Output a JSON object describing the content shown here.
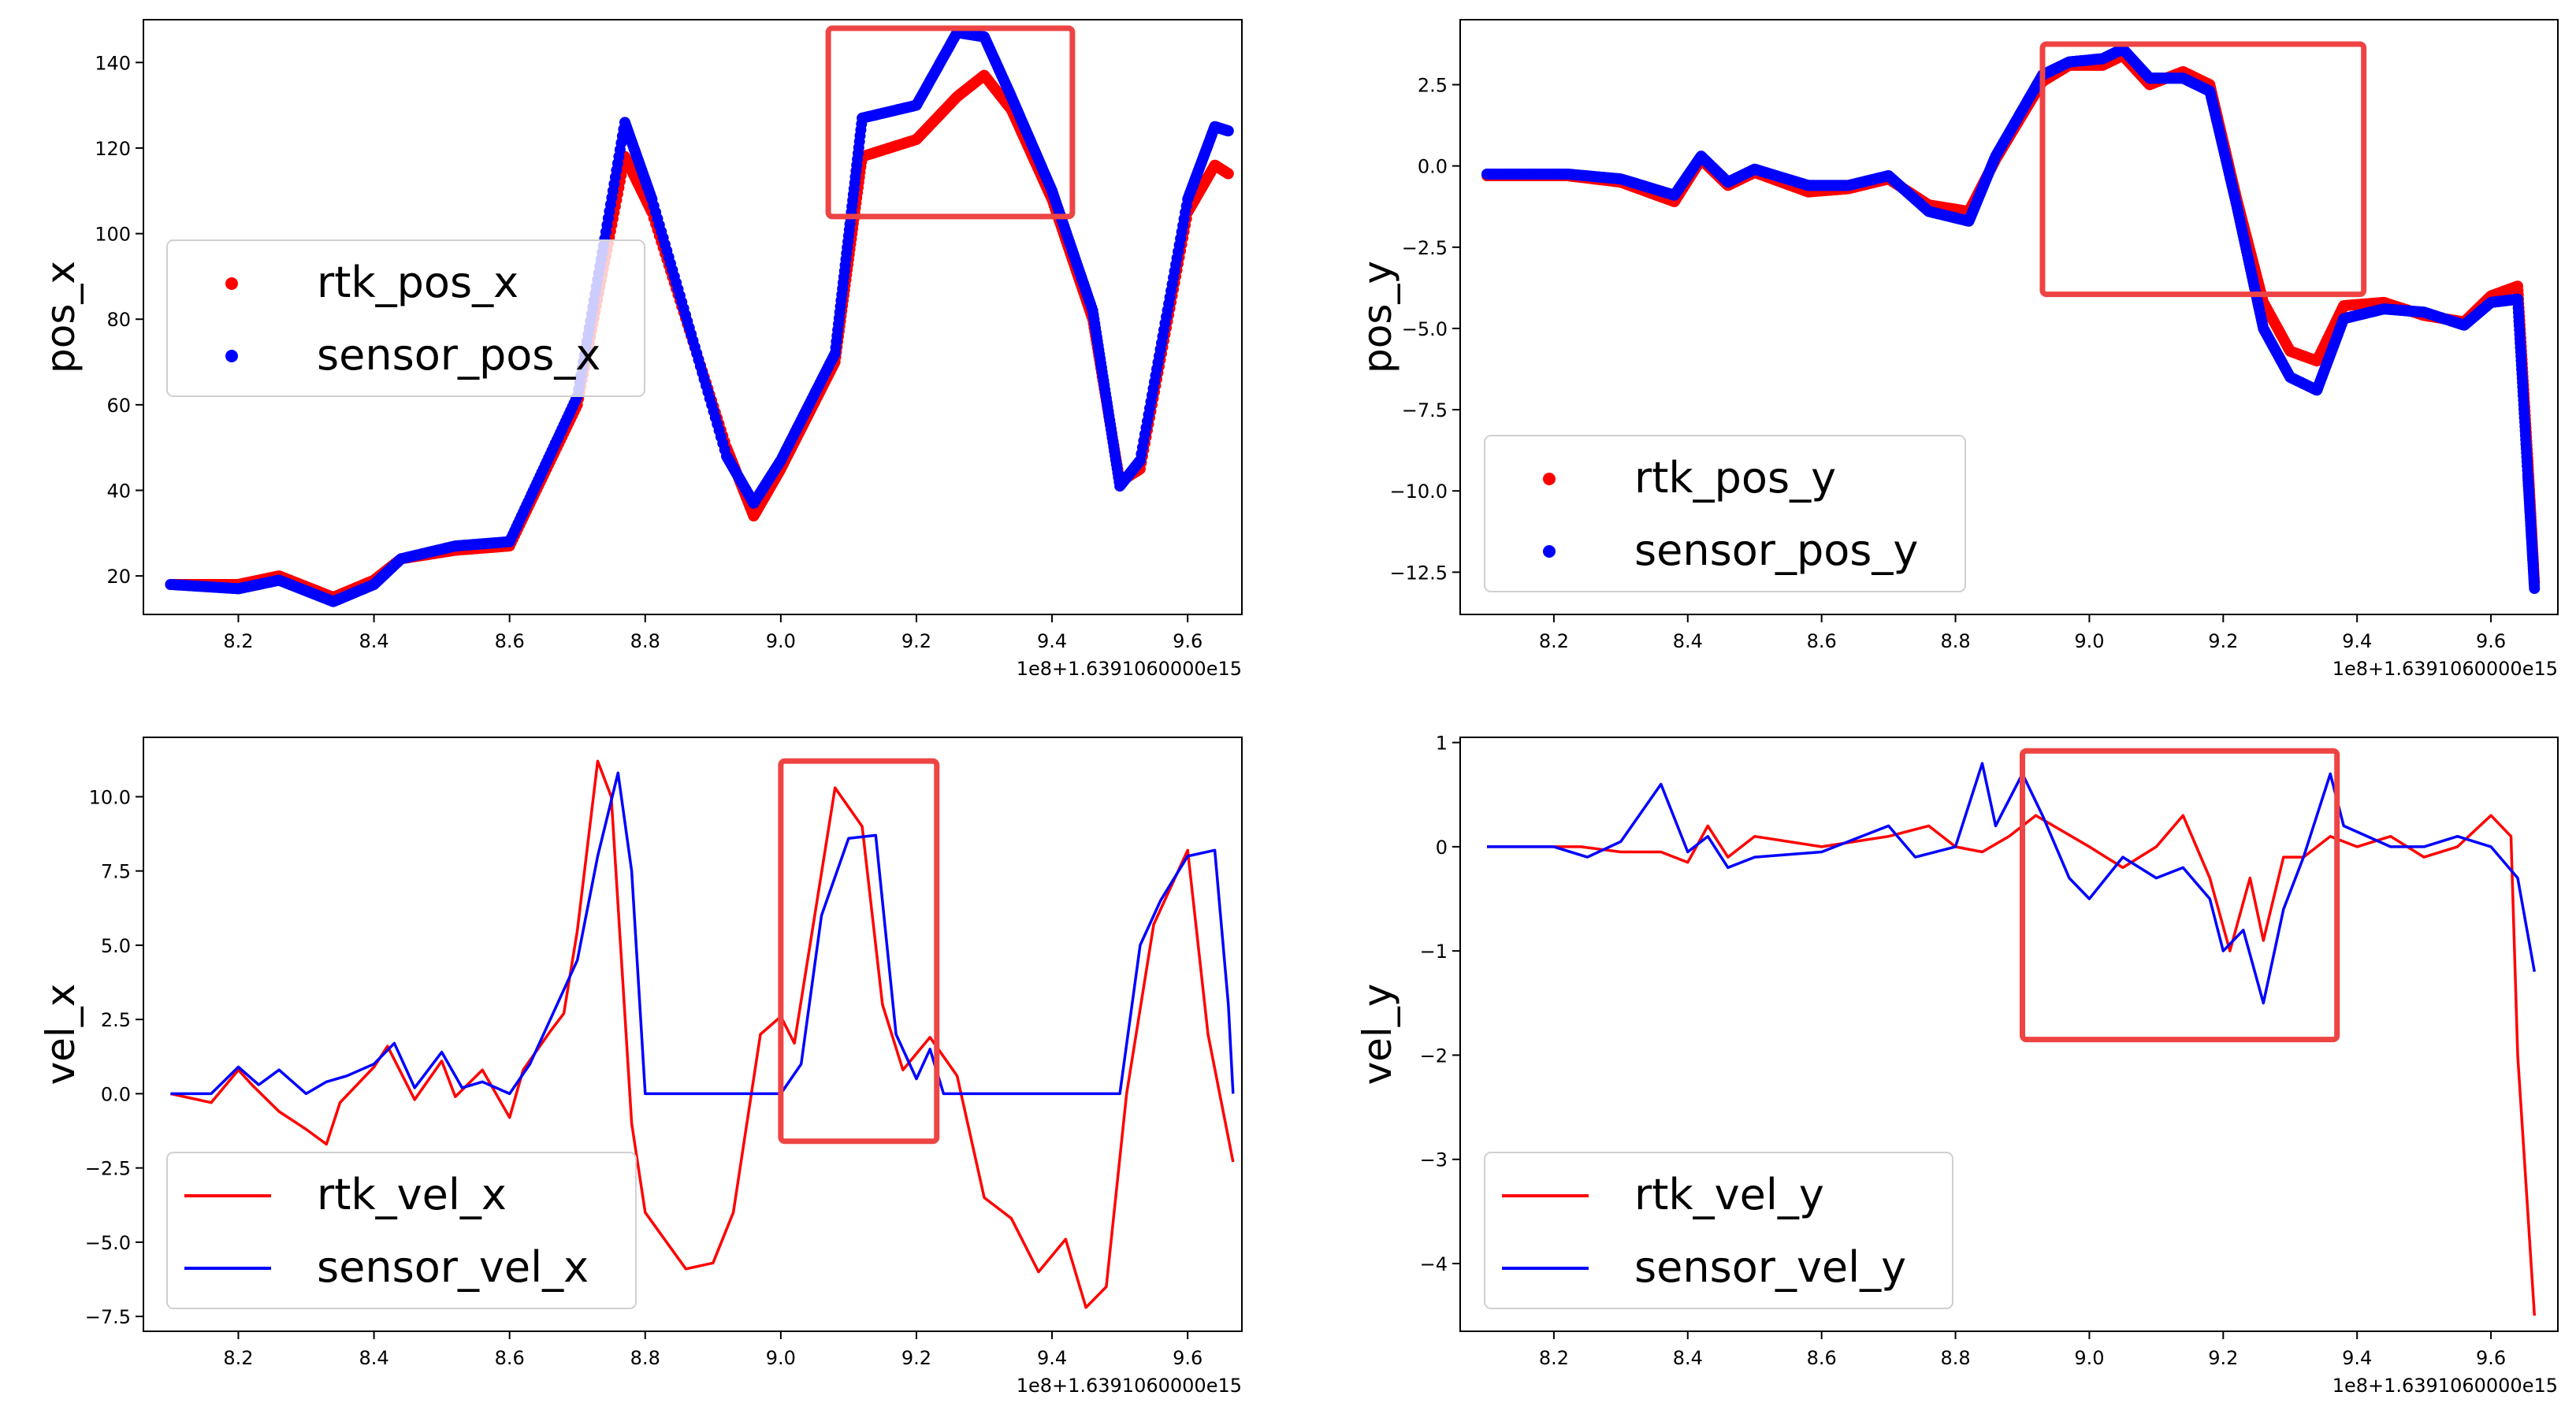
{
  "chart_data": [
    {
      "type": "scatter",
      "ylabel": "pos_x",
      "offset_label": "1e8+1.6391060000e15",
      "xlim": [
        8.06,
        9.68
      ],
      "ylim": [
        11,
        150
      ],
      "xticks": [
        8.2,
        8.4,
        8.6,
        8.8,
        9.0,
        9.2,
        9.4,
        9.6
      ],
      "xtick_labels": [
        "8.2",
        "8.4",
        "8.6",
        "8.8",
        "9.0",
        "9.2",
        "9.4",
        "9.6"
      ],
      "yticks": [
        20,
        40,
        60,
        80,
        100,
        120,
        140
      ],
      "ytick_labels": [
        "20",
        "40",
        "60",
        "80",
        "100",
        "120",
        "140"
      ],
      "legend": "center-left",
      "highlight_box": {
        "x": [
          9.07,
          9.43
        ],
        "y": [
          104,
          148
        ]
      },
      "series": [
        {
          "name": "rtk_pos_x",
          "color": "#ff0000",
          "marker": "dot",
          "x": [
            8.1,
            8.2,
            8.26,
            8.34,
            8.4,
            8.44,
            8.52,
            8.6,
            8.7,
            8.77,
            8.81,
            8.92,
            8.96,
            9.0,
            9.08,
            9.12,
            9.2,
            9.26,
            9.3,
            9.34,
            9.4,
            9.46,
            9.5,
            9.53,
            9.6,
            9.64,
            9.66
          ],
          "y": [
            18,
            18,
            20,
            15,
            19,
            24,
            26,
            27,
            60,
            118,
            105,
            50,
            34,
            45,
            70,
            118,
            122,
            132,
            137,
            129,
            108,
            80,
            42,
            45,
            105,
            116,
            114
          ]
        },
        {
          "name": "sensor_pos_x",
          "color": "#0000ff",
          "marker": "dot",
          "x": [
            8.1,
            8.2,
            8.26,
            8.34,
            8.4,
            8.44,
            8.52,
            8.6,
            8.7,
            8.77,
            8.81,
            8.92,
            8.96,
            9.0,
            9.08,
            9.12,
            9.2,
            9.26,
            9.3,
            9.34,
            9.4,
            9.46,
            9.5,
            9.53,
            9.6,
            9.64,
            9.66
          ],
          "y": [
            18,
            17,
            19,
            14,
            18,
            24,
            27,
            28,
            62,
            126,
            108,
            48,
            37,
            47,
            72,
            127,
            130,
            147,
            146,
            132,
            110,
            82,
            41,
            47,
            108,
            125,
            124
          ]
        }
      ]
    },
    {
      "type": "scatter",
      "ylabel": "pos_y",
      "offset_label": "1e8+1.6391060000e15",
      "xlim": [
        8.06,
        9.7
      ],
      "ylim": [
        -13.8,
        4.5
      ],
      "xticks": [
        8.2,
        8.4,
        8.6,
        8.8,
        9.0,
        9.2,
        9.4,
        9.6
      ],
      "xtick_labels": [
        "8.2",
        "8.4",
        "8.6",
        "8.8",
        "9.0",
        "9.2",
        "9.4",
        "9.6"
      ],
      "yticks": [
        2.5,
        0.0,
        -2.5,
        -5.0,
        -7.5,
        -10.0,
        -12.5
      ],
      "ytick_labels": [
        "2.5",
        "0.0",
        "−2.5",
        "−5.0",
        "−7.5",
        "−10.0",
        "−12.5"
      ],
      "legend": "lower-left",
      "highlight_box": {
        "x": [
          8.93,
          9.41
        ],
        "y": [
          -3.95,
          3.75
        ]
      },
      "series": [
        {
          "name": "rtk_pos_y",
          "color": "#ff0000",
          "marker": "dot",
          "x": [
            8.1,
            8.22,
            8.3,
            8.38,
            8.42,
            8.46,
            8.5,
            8.58,
            8.64,
            8.7,
            8.76,
            8.82,
            8.86,
            8.93,
            8.97,
            9.02,
            9.05,
            9.09,
            9.14,
            9.18,
            9.22,
            9.26,
            9.3,
            9.34,
            9.38,
            9.44,
            9.5,
            9.56,
            9.6,
            9.64,
            9.655,
            9.665
          ],
          "y": [
            -0.3,
            -0.3,
            -0.5,
            -1.1,
            0.2,
            -0.6,
            -0.2,
            -0.8,
            -0.7,
            -0.4,
            -1.2,
            -1.4,
            0.2,
            2.6,
            3.1,
            3.1,
            3.4,
            2.5,
            2.9,
            2.5,
            -1.0,
            -4.2,
            -5.7,
            -6.0,
            -4.3,
            -4.2,
            -4.6,
            -4.8,
            -4.0,
            -3.7,
            -9.0,
            -12.8
          ]
        },
        {
          "name": "sensor_pos_y",
          "color": "#0000ff",
          "marker": "dot",
          "x": [
            8.1,
            8.22,
            8.3,
            8.38,
            8.42,
            8.46,
            8.5,
            8.58,
            8.64,
            8.7,
            8.76,
            8.82,
            8.86,
            8.93,
            8.97,
            9.02,
            9.05,
            9.09,
            9.14,
            9.18,
            9.22,
            9.26,
            9.3,
            9.34,
            9.38,
            9.44,
            9.5,
            9.56,
            9.6,
            9.64,
            9.655,
            9.665
          ],
          "y": [
            -0.25,
            -0.25,
            -0.4,
            -0.9,
            0.3,
            -0.5,
            -0.1,
            -0.6,
            -0.6,
            -0.3,
            -1.4,
            -1.7,
            0.3,
            2.8,
            3.2,
            3.3,
            3.6,
            2.7,
            2.7,
            2.3,
            -1.2,
            -5.0,
            -6.5,
            -6.9,
            -4.7,
            -4.4,
            -4.5,
            -4.9,
            -4.2,
            -4.1,
            -9.5,
            -13.0
          ]
        }
      ]
    },
    {
      "type": "line",
      "ylabel": "vel_x",
      "offset_label": "1e8+1.6391060000e15",
      "xlim": [
        8.06,
        9.68
      ],
      "ylim": [
        -8.0,
        12.0
      ],
      "xticks": [
        8.2,
        8.4,
        8.6,
        8.8,
        9.0,
        9.2,
        9.4,
        9.6
      ],
      "xtick_labels": [
        "8.2",
        "8.4",
        "8.6",
        "8.8",
        "9.0",
        "9.2",
        "9.4",
        "9.6"
      ],
      "yticks": [
        10.0,
        7.5,
        5.0,
        2.5,
        0.0,
        -2.5,
        -5.0,
        -7.5
      ],
      "ytick_labels": [
        "10.0",
        "7.5",
        "5.0",
        "2.5",
        "0.0",
        "−2.5",
        "−5.0",
        "−7.5"
      ],
      "legend": "lower-left",
      "highlight_box": {
        "x": [
          9.0,
          9.23
        ],
        "y": [
          -1.6,
          11.2
        ]
      },
      "series": [
        {
          "name": "rtk_vel_x",
          "color": "#ff0000",
          "x": [
            8.1,
            8.16,
            8.2,
            8.22,
            8.26,
            8.3,
            8.33,
            8.35,
            8.4,
            8.42,
            8.46,
            8.5,
            8.52,
            8.56,
            8.6,
            8.62,
            8.66,
            8.68,
            8.7,
            8.73,
            8.75,
            8.78,
            8.8,
            8.86,
            8.9,
            8.93,
            8.97,
            9.0,
            9.02,
            9.05,
            9.08,
            9.12,
            9.15,
            9.18,
            9.22,
            9.26,
            9.3,
            9.34,
            9.38,
            9.42,
            9.45,
            9.48,
            9.51,
            9.55,
            9.6,
            9.63,
            9.667
          ],
          "y": [
            0.0,
            -0.3,
            0.8,
            0.3,
            -0.6,
            -1.2,
            -1.7,
            -0.3,
            0.9,
            1.6,
            -0.2,
            1.1,
            -0.1,
            0.8,
            -0.8,
            0.8,
            2.1,
            2.7,
            5.5,
            11.2,
            10.0,
            -1.0,
            -4.0,
            -5.9,
            -5.7,
            -4.0,
            2.0,
            2.6,
            1.7,
            6.0,
            10.3,
            9.0,
            3.0,
            0.8,
            1.9,
            0.6,
            -3.5,
            -4.2,
            -6.0,
            -4.9,
            -7.2,
            -6.5,
            0.0,
            5.7,
            8.2,
            2.0,
            -2.3
          ]
        },
        {
          "name": "sensor_vel_x",
          "color": "#0000ff",
          "x": [
            8.1,
            8.16,
            8.2,
            8.23,
            8.26,
            8.3,
            8.33,
            8.36,
            8.4,
            8.43,
            8.46,
            8.5,
            8.53,
            8.56,
            8.6,
            8.63,
            8.66,
            8.7,
            8.73,
            8.76,
            8.78,
            8.8,
            9.0,
            9.03,
            9.06,
            9.1,
            9.14,
            9.17,
            9.2,
            9.22,
            9.24,
            9.5,
            9.53,
            9.56,
            9.6,
            9.64,
            9.66,
            9.667
          ],
          "y": [
            0.0,
            0.0,
            0.9,
            0.3,
            0.8,
            0.0,
            0.4,
            0.6,
            1.0,
            1.7,
            0.2,
            1.4,
            0.2,
            0.4,
            0.0,
            1.0,
            2.5,
            4.5,
            8.0,
            10.8,
            7.5,
            0.0,
            0.0,
            1.0,
            6.0,
            8.6,
            8.7,
            2.0,
            0.5,
            1.5,
            0.0,
            0.0,
            5.0,
            6.5,
            8.0,
            8.2,
            3.0,
            0.0
          ]
        }
      ]
    },
    {
      "type": "line",
      "ylabel": "vel_y",
      "offset_label": "1e8+1.6391060000e15",
      "xlim": [
        8.06,
        9.7
      ],
      "ylim": [
        -4.65,
        1.05
      ],
      "xticks": [
        8.2,
        8.4,
        8.6,
        8.8,
        9.0,
        9.2,
        9.4,
        9.6
      ],
      "xtick_labels": [
        "8.2",
        "8.4",
        "8.6",
        "8.8",
        "9.0",
        "9.2",
        "9.4",
        "9.6"
      ],
      "yticks": [
        1,
        0,
        -1,
        -2,
        -3,
        -4
      ],
      "ytick_labels": [
        "1",
        "0",
        "−1",
        "−2",
        "−3",
        "−4"
      ],
      "legend": "lower-left",
      "highlight_box": {
        "x": [
          8.9,
          9.37
        ],
        "y": [
          -1.85,
          0.92
        ]
      },
      "series": [
        {
          "name": "rtk_vel_y",
          "color": "#ff0000",
          "x": [
            8.1,
            8.24,
            8.3,
            8.36,
            8.4,
            8.43,
            8.46,
            8.5,
            8.6,
            8.7,
            8.76,
            8.8,
            8.84,
            8.88,
            8.92,
            9.0,
            9.05,
            9.1,
            9.14,
            9.18,
            9.21,
            9.24,
            9.26,
            9.29,
            9.32,
            9.36,
            9.4,
            9.45,
            9.5,
            9.55,
            9.6,
            9.63,
            9.64,
            9.665
          ],
          "y": [
            0.0,
            0.0,
            -0.05,
            -0.05,
            -0.15,
            0.2,
            -0.1,
            0.1,
            0.0,
            0.1,
            0.2,
            0.0,
            -0.05,
            0.1,
            0.3,
            0.0,
            -0.2,
            0.0,
            0.3,
            -0.3,
            -1.0,
            -0.3,
            -0.9,
            -0.1,
            -0.1,
            0.1,
            0.0,
            0.1,
            -0.1,
            0.0,
            0.3,
            0.1,
            -2.0,
            -4.5
          ]
        },
        {
          "name": "sensor_vel_y",
          "color": "#0000ff",
          "x": [
            8.1,
            8.2,
            8.25,
            8.3,
            8.36,
            8.4,
            8.43,
            8.46,
            8.5,
            8.6,
            8.7,
            8.74,
            8.8,
            8.84,
            8.86,
            8.9,
            8.93,
            8.97,
            9.0,
            9.05,
            9.1,
            9.14,
            9.18,
            9.2,
            9.23,
            9.26,
            9.29,
            9.32,
            9.36,
            9.38,
            9.45,
            9.5,
            9.55,
            9.6,
            9.64,
            9.665
          ],
          "y": [
            0.0,
            0.0,
            -0.1,
            0.05,
            0.6,
            -0.05,
            0.1,
            -0.2,
            -0.1,
            -0.05,
            0.2,
            -0.1,
            0.0,
            0.8,
            0.2,
            0.7,
            0.3,
            -0.3,
            -0.5,
            -0.1,
            -0.3,
            -0.2,
            -0.5,
            -1.0,
            -0.8,
            -1.5,
            -0.6,
            -0.1,
            0.7,
            0.2,
            0.0,
            0.0,
            0.1,
            0.0,
            -0.3,
            -1.2
          ]
        }
      ]
    }
  ]
}
